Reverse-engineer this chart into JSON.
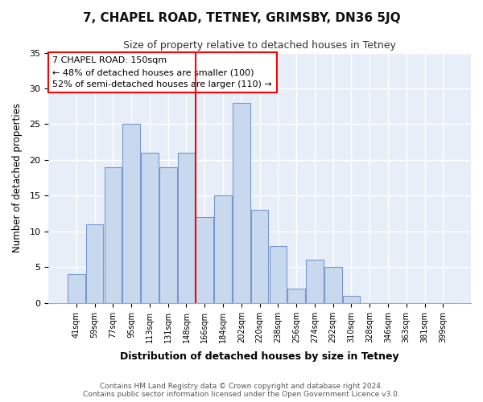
{
  "title": "7, CHAPEL ROAD, TETNEY, GRIMSBY, DN36 5JQ",
  "subtitle": "Size of property relative to detached houses in Tetney",
  "xlabel": "Distribution of detached houses by size in Tetney",
  "ylabel": "Number of detached properties",
  "bar_color": "#c8d8ee",
  "bar_edge_color": "#7799cc",
  "categories": [
    "41sqm",
    "59sqm",
    "77sqm",
    "95sqm",
    "113sqm",
    "131sqm",
    "148sqm",
    "166sqm",
    "184sqm",
    "202sqm",
    "220sqm",
    "238sqm",
    "256sqm",
    "274sqm",
    "292sqm",
    "310sqm",
    "328sqm",
    "346sqm",
    "363sqm",
    "381sqm",
    "399sqm"
  ],
  "values": [
    4,
    11,
    19,
    25,
    21,
    19,
    21,
    12,
    15,
    28,
    13,
    8,
    2,
    6,
    5,
    1,
    0,
    0,
    0,
    0,
    0
  ],
  "property_line_idx": 6.5,
  "property_line_label": "7 CHAPEL ROAD: 150sqm",
  "annotation_line1": "← 48% of detached houses are smaller (100)",
  "annotation_line2": "52% of semi-detached houses are larger (110) →",
  "ylim": [
    0,
    35
  ],
  "yticks": [
    0,
    5,
    10,
    15,
    20,
    25,
    30,
    35
  ],
  "fig_bg_color": "#ffffff",
  "ax_bg_color": "#e8eef8",
  "grid_color": "#ffffff",
  "footer_line1": "Contains HM Land Registry data © Crown copyright and database right 2024.",
  "footer_line2": "Contains public sector information licensed under the Open Government Licence v3.0."
}
